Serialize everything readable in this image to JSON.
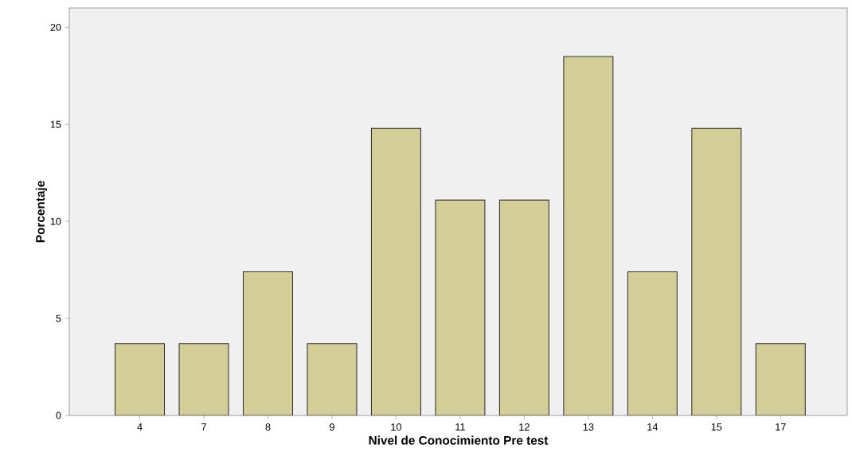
{
  "chart_data": {
    "type": "bar",
    "xlabel": "Nivel de Conocimiento Pre test",
    "ylabel": "Porcentaje",
    "categories": [
      "4",
      "7",
      "8",
      "9",
      "10",
      "11",
      "12",
      "13",
      "14",
      "15",
      "17"
    ],
    "values": [
      3.7,
      3.7,
      7.4,
      3.7,
      14.8,
      11.1,
      11.1,
      18.5,
      7.4,
      14.8,
      3.7
    ],
    "color": "#d3ce97",
    "ylim": [
      0,
      21
    ],
    "yticks": [
      0,
      5,
      10,
      15,
      20
    ]
  }
}
